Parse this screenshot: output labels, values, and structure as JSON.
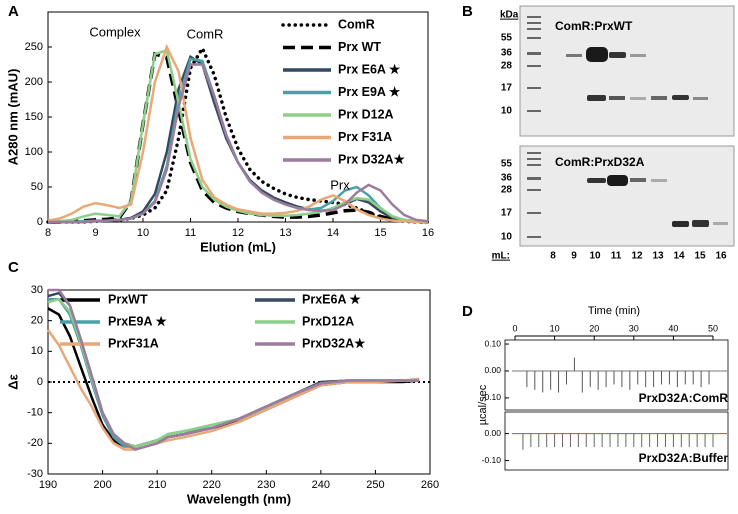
{
  "chart_data": [
    {
      "type": "line",
      "panel": "A",
      "x_label": "Elution (mL)",
      "y_label": "A280 nm (mAU)",
      "legend": "upper right",
      "annotations": [
        "Complex",
        "ComR",
        "Prx"
      ],
      "xlim": [
        8,
        16
      ],
      "xticks": [
        8,
        9,
        10,
        11,
        12,
        13,
        14,
        15,
        16
      ],
      "ylim": [
        0,
        300
      ],
      "yticks": [
        0,
        50,
        100,
        150,
        200,
        250
      ],
      "x": [
        8,
        8.25,
        8.5,
        8.75,
        9,
        9.25,
        9.5,
        9.75,
        10,
        10.25,
        10.5,
        10.75,
        11,
        11.25,
        11.5,
        11.75,
        12,
        12.25,
        12.5,
        12.75,
        13,
        13.25,
        13.5,
        13.75,
        14,
        14.25,
        14.5,
        14.75,
        15,
        15.25,
        15.5,
        15.75,
        16
      ],
      "series": [
        {
          "name": "ComR",
          "color": "#000000",
          "style": "dotted",
          "values": [
            0,
            0,
            0,
            0,
            1,
            2,
            3,
            5,
            10,
            20,
            45,
            120,
            220,
            248,
            210,
            150,
            105,
            75,
            58,
            48,
            40,
            35,
            32,
            30,
            28,
            25,
            20,
            13,
            7,
            3,
            1,
            0,
            0
          ]
        },
        {
          "name": "Prx WT",
          "color": "#000000",
          "style": "dashed",
          "values": [
            0,
            0,
            1,
            2,
            3,
            4,
            6,
            30,
            140,
            240,
            235,
            160,
            85,
            45,
            28,
            20,
            15,
            12,
            10,
            8,
            7,
            7,
            8,
            10,
            13,
            16,
            17,
            14,
            8,
            4,
            2,
            1,
            0
          ]
        },
        {
          "name": "Prx E6A ★",
          "color": "#34495e",
          "style": "solid",
          "values": [
            0,
            0,
            0,
            0,
            1,
            2,
            3,
            6,
            15,
            40,
            100,
            190,
            236,
            225,
            170,
            120,
            85,
            60,
            45,
            35,
            28,
            22,
            18,
            16,
            18,
            25,
            33,
            28,
            15,
            6,
            2,
            1,
            0
          ]
        },
        {
          "name": "Prx E9A ★",
          "color": "#4aa0a8",
          "style": "solid",
          "values": [
            0,
            0,
            0,
            1,
            2,
            2,
            3,
            5,
            12,
            30,
            80,
            175,
            233,
            230,
            180,
            125,
            85,
            58,
            42,
            32,
            25,
            20,
            18,
            20,
            30,
            45,
            50,
            38,
            20,
            8,
            3,
            1,
            0
          ]
        },
        {
          "name": "Prx D12A",
          "color": "#8ccf87",
          "style": "solid",
          "values": [
            0,
            1,
            3,
            8,
            12,
            10,
            8,
            30,
            140,
            240,
            245,
            170,
            90,
            50,
            32,
            22,
            16,
            12,
            10,
            9,
            9,
            10,
            12,
            15,
            20,
            28,
            34,
            32,
            20,
            8,
            3,
            1,
            0
          ]
        },
        {
          "name": "Prx F31A",
          "color": "#e8a878",
          "style": "solid",
          "values": [
            2,
            5,
            12,
            22,
            27,
            24,
            20,
            25,
            100,
            200,
            250,
            215,
            120,
            60,
            35,
            25,
            18,
            15,
            12,
            12,
            13,
            16,
            22,
            32,
            38,
            30,
            18,
            10,
            5,
            2,
            1,
            0,
            0
          ]
        },
        {
          "name": "Prx D32A★",
          "color": "#9c7c9c",
          "style": "solid",
          "values": [
            0,
            0,
            0,
            0,
            1,
            2,
            3,
            5,
            12,
            28,
            75,
            165,
            225,
            225,
            180,
            125,
            85,
            58,
            42,
            32,
            25,
            20,
            17,
            16,
            17,
            25,
            42,
            53,
            45,
            25,
            10,
            3,
            1
          ]
        }
      ]
    },
    {
      "type": "line",
      "panel": "C",
      "x_label": "Wavelength (nm)",
      "y_label": "Δε",
      "legend": "top",
      "zero_line": true,
      "xlim": [
        190,
        260
      ],
      "xticks": [
        190,
        200,
        210,
        220,
        230,
        240,
        250,
        260
      ],
      "ylim": [
        -30,
        30
      ],
      "yticks": [
        -30,
        -20,
        -10,
        0,
        10,
        20,
        30
      ],
      "x": [
        190,
        192,
        194,
        196,
        198,
        200,
        202,
        204,
        206,
        208,
        210,
        212,
        215,
        220,
        225,
        230,
        235,
        240,
        245,
        250,
        255,
        258
      ],
      "series": [
        {
          "name": "PrxWT",
          "color": "#000000",
          "style": "solid",
          "values": [
            24,
            22,
            15,
            5,
            -5,
            -14,
            -19,
            -21,
            -21,
            -20,
            -19,
            -18,
            -17,
            -15,
            -13,
            -9,
            -5,
            -1,
            0,
            0,
            0,
            0.5
          ]
        },
        {
          "name": "PrxE6A ★",
          "color": "#34495e",
          "style": "solid",
          "values": [
            28,
            29,
            25,
            14,
            2,
            -10,
            -17,
            -20,
            -21,
            -20,
            -19,
            -18,
            -17,
            -15,
            -12,
            -8,
            -4,
            0,
            0.5,
            0.5,
            0.5,
            0.5
          ]
        },
        {
          "name": "PrxE9A ★",
          "color": "#4aa0a8",
          "style": "solid",
          "values": [
            27,
            27,
            22,
            12,
            0,
            -11,
            -18,
            -21,
            -21,
            -20,
            -19,
            -17,
            -16,
            -15,
            -12,
            -8,
            -4,
            -0.5,
            0.5,
            0.5,
            0.5,
            0.5
          ]
        },
        {
          "name": "PrxD12A",
          "color": "#8ccf87",
          "style": "solid",
          "values": [
            26,
            27,
            23,
            13,
            1,
            -10,
            -17,
            -20,
            -21,
            -20,
            -19,
            -17,
            -16,
            -14,
            -12,
            -8,
            -4,
            -0.5,
            0.5,
            0.5,
            0.5,
            0.5
          ]
        },
        {
          "name": "PrxF31A",
          "color": "#e8a878",
          "style": "solid",
          "values": [
            17,
            12,
            5,
            -2,
            -8,
            -15,
            -20,
            -22,
            -22,
            -21,
            -20,
            -19,
            -18,
            -16,
            -13,
            -9,
            -5,
            -1,
            0,
            0,
            0.5,
            1
          ]
        },
        {
          "name": "PrxD32A★",
          "color": "#9c7c9c",
          "style": "solid",
          "values": [
            30,
            30,
            25,
            14,
            2,
            -10,
            -17,
            -20,
            -22,
            -21,
            -20,
            -18,
            -17,
            -15,
            -12,
            -8,
            -4,
            -0.5,
            0.5,
            0.5,
            0.5,
            0.5
          ]
        }
      ]
    },
    {
      "type": "itc",
      "panel": "D",
      "x_label": "Time (min)",
      "y_label": "µcal/sec",
      "xlim": [
        0,
        50
      ],
      "xticks": [
        0,
        10,
        20,
        30,
        40,
        50
      ],
      "panels": [
        {
          "label": "PrxD32A:ComR",
          "ylim": [
            -0.145,
            0.115
          ],
          "yticks": [
            {
              "value": 0.1,
              "label": "0.10"
            },
            {
              "value": 0,
              "label": "0.00"
            },
            {
              "value": -0.1,
              "label": "-0.10"
            }
          ],
          "color": "#555555",
          "baseline_color": "#777777",
          "x": [
            3,
            5,
            7,
            9,
            11,
            13,
            15,
            17,
            19,
            21,
            23,
            25,
            27,
            29,
            31,
            33,
            35,
            37,
            39,
            41,
            43,
            45,
            47,
            49
          ],
          "values": [
            -0.06,
            -0.07,
            -0.08,
            -0.07,
            -0.08,
            -0.05,
            0.05,
            -0.08,
            -0.06,
            -0.07,
            -0.06,
            -0.05,
            -0.06,
            -0.07,
            -0.05,
            -0.06,
            -0.06,
            -0.05,
            -0.05,
            -0.06,
            -0.05,
            -0.05,
            -0.06,
            -0.05
          ]
        },
        {
          "label": "PrxD32A:Buffer",
          "ylim": [
            -0.135,
            0.08
          ],
          "yticks": [
            {
              "value": 0,
              "label": "0.00"
            },
            {
              "value": -0.1,
              "label": "-0.10"
            }
          ],
          "color": "#666666",
          "baseline_color": "#b5523b",
          "x": [
            2,
            4,
            6,
            8,
            10,
            12,
            14,
            16,
            18,
            20,
            22,
            24,
            26,
            28,
            30,
            32,
            34,
            36,
            38,
            40,
            42,
            44,
            46,
            48,
            50
          ],
          "values": [
            -0.06,
            -0.05,
            -0.05,
            -0.05,
            -0.05,
            -0.05,
            -0.05,
            -0.05,
            -0.05,
            -0.05,
            -0.05,
            -0.05,
            -0.05,
            -0.05,
            -0.05,
            -0.05,
            -0.05,
            -0.05,
            -0.05,
            -0.05,
            -0.05,
            -0.05,
            -0.05,
            -0.05,
            -0.05
          ]
        }
      ]
    }
  ],
  "gel": {
    "panel": "B",
    "unit": "kDa",
    "lane_label": "mL:",
    "lanes": [
      "8",
      "9",
      "10",
      "11",
      "12",
      "13",
      "14",
      "15",
      "16"
    ],
    "panels": [
      {
        "title": "ComR:PrxWT",
        "markers": [
          "55",
          "36",
          "28",
          "17",
          "10"
        ]
      },
      {
        "title": "ComR:PrxD32A",
        "markers": [
          "55",
          "36",
          "28",
          "17",
          "10"
        ]
      }
    ]
  }
}
